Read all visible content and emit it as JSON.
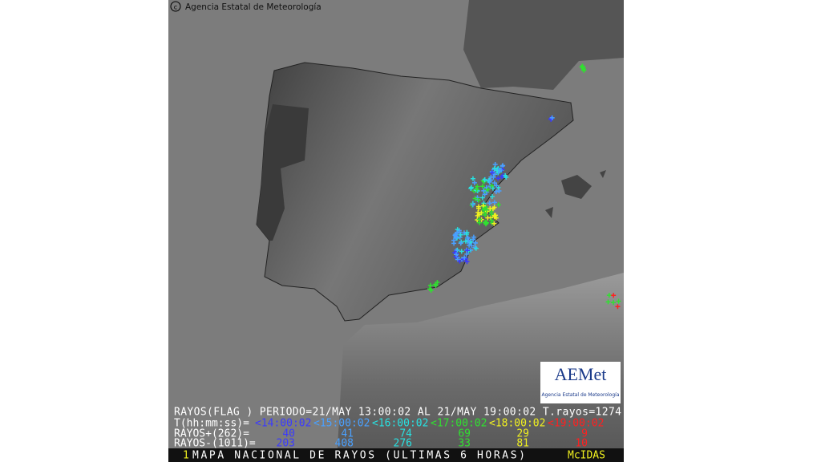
{
  "credit": "Agencia Estatal de Meteorología",
  "logo": {
    "name": "AEMet",
    "subtitle": "Agencia Estatal de Meteorología"
  },
  "legend": {
    "header": "RAYOS(FLAG ) PERIODO=21/MAY 13:00:02 AL 21/MAY 19:00:02 T.rayos=1274",
    "time_label": "T(hh:mm:ss)=",
    "positive_label": "RAYOS+(262)=",
    "negative_label": "RAYOS-(1011)=",
    "intervals": [
      {
        "label": "<14:00:02",
        "color": "#3a3aff",
        "positive": 40,
        "negative": 203
      },
      {
        "label": "<15:00:02",
        "color": "#4aa0ff",
        "positive": 41,
        "negative": 408
      },
      {
        "label": "<16:00:02",
        "color": "#28e0e0",
        "positive": 74,
        "negative": 276
      },
      {
        "label": "<17:00:02",
        "color": "#30e030",
        "positive": 69,
        "negative": 33
      },
      {
        "label": "<18:00:02",
        "color": "#f0f020",
        "positive": 29,
        "negative": 81
      },
      {
        "label": "<19:00:02",
        "color": "#ff2020",
        "positive": 9,
        "negative": 10
      }
    ]
  },
  "footer": {
    "index": "1",
    "title": "MAPA NACIONAL DE RAYOS (ULTIMAS 6 HORAS)",
    "system": "McIDAS"
  }
}
